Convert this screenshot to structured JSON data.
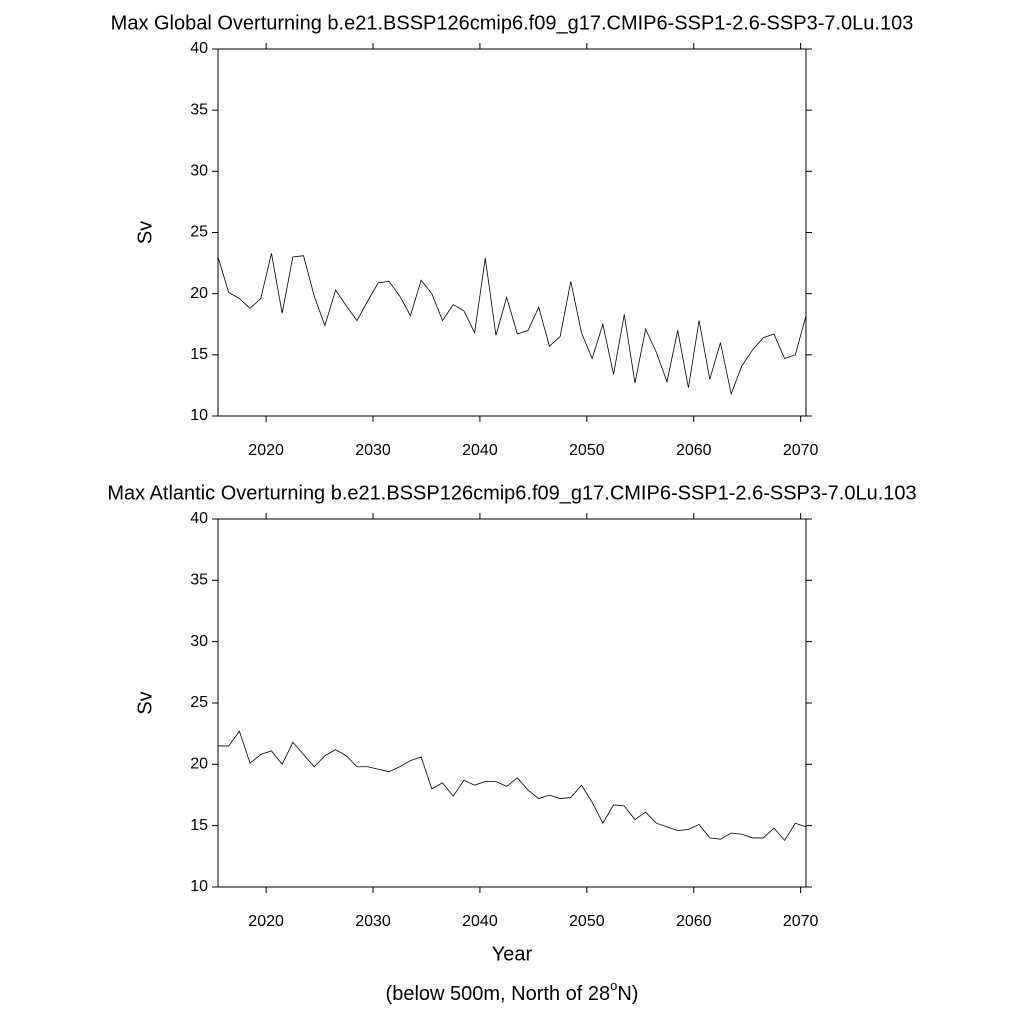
{
  "chart_data": [
    {
      "type": "line",
      "title": "Max Global Overturning b.e21.BSSP126cmip6.f09_g17.CMIP6-SSP1-2.6-SSP3-7.0Lu.103",
      "ylabel": "Sv",
      "x": [
        2015.5,
        2016.5,
        2017.5,
        2018.5,
        2019.5,
        2020.5,
        2021.5,
        2022.5,
        2023.5,
        2024.5,
        2025.5,
        2026.5,
        2027.5,
        2028.5,
        2029.5,
        2030.5,
        2031.5,
        2032.5,
        2033.5,
        2034.5,
        2035.5,
        2036.5,
        2037.5,
        2038.5,
        2039.5,
        2040.5,
        2041.5,
        2042.5,
        2043.5,
        2044.5,
        2045.5,
        2046.5,
        2047.5,
        2048.5,
        2049.5,
        2050.5,
        2051.5,
        2052.5,
        2053.5,
        2054.5,
        2055.5,
        2056.5,
        2057.5,
        2058.5,
        2059.5,
        2060.5,
        2061.5,
        2062.5,
        2063.5,
        2064.5,
        2065.5,
        2066.5,
        2067.5,
        2068.5,
        2069.5,
        2070.5
      ],
      "series": [
        {
          "color": "#000000",
          "values": [
            23.0,
            20.1,
            19.6,
            18.8,
            19.6,
            23.3,
            18.4,
            23.0,
            23.1,
            19.8,
            17.4,
            20.3,
            19.0,
            17.8,
            19.4,
            20.9,
            21.0,
            19.8,
            18.2,
            21.1,
            20.0,
            17.8,
            19.1,
            18.6,
            16.8,
            22.9,
            16.6,
            19.7,
            16.7,
            17.0,
            18.9,
            15.7,
            16.5,
            21.0,
            16.8,
            14.7,
            17.5,
            13.4,
            18.3,
            12.7,
            17.1,
            15.2,
            12.8,
            17.0,
            12.3,
            17.8,
            13.0,
            16.0,
            11.8,
            14.1,
            15.4,
            16.4,
            16.7,
            14.7,
            15.0,
            18.2
          ]
        }
      ],
      "xlim": [
        2015.5,
        2070.5
      ],
      "xticks": [
        2020,
        2030,
        2040,
        2050,
        2060,
        2070
      ],
      "ylim": [
        10,
        40
      ],
      "yticks": [
        10,
        15,
        20,
        25,
        30,
        35,
        40
      ]
    },
    {
      "type": "line",
      "title": "Max Atlantic Overturning b.e21.BSSP126cmip6.f09_g17.CMIP6-SSP1-2.6-SSP3-7.0Lu.103",
      "ylabel": "Sv",
      "xlabel": "Year",
      "note": {
        "text": "(below 500m, North of 28",
        "superscript": "o",
        "after": "N)"
      },
      "x": [
        2015.5,
        2016.5,
        2017.5,
        2018.5,
        2019.5,
        2020.5,
        2021.5,
        2022.5,
        2023.5,
        2024.5,
        2025.5,
        2026.5,
        2027.5,
        2028.5,
        2029.5,
        2030.5,
        2031.5,
        2032.5,
        2033.5,
        2034.5,
        2035.5,
        2036.5,
        2037.5,
        2038.5,
        2039.5,
        2040.5,
        2041.5,
        2042.5,
        2043.5,
        2044.5,
        2045.5,
        2046.5,
        2047.5,
        2048.5,
        2049.5,
        2050.5,
        2051.5,
        2052.5,
        2053.5,
        2054.5,
        2055.5,
        2056.5,
        2057.5,
        2058.5,
        2059.5,
        2060.5,
        2061.5,
        2062.5,
        2063.5,
        2064.5,
        2065.5,
        2066.5,
        2067.5,
        2068.5,
        2069.5,
        2070.5
      ],
      "series": [
        {
          "color": "#000000",
          "values": [
            21.5,
            21.5,
            22.7,
            20.1,
            20.8,
            21.1,
            20.0,
            21.8,
            20.8,
            19.8,
            20.7,
            21.2,
            20.7,
            19.8,
            19.8,
            19.6,
            19.4,
            19.8,
            20.3,
            20.6,
            18.0,
            18.5,
            17.4,
            18.7,
            18.3,
            18.6,
            18.6,
            18.2,
            18.9,
            17.9,
            17.2,
            17.5,
            17.2,
            17.3,
            18.3,
            16.9,
            15.2,
            16.7,
            16.6,
            15.5,
            16.1,
            15.2,
            14.9,
            14.6,
            14.7,
            15.1,
            14.0,
            13.9,
            14.4,
            14.3,
            14.0,
            14.0,
            14.8,
            13.8,
            15.2,
            14.9
          ]
        }
      ],
      "xlim": [
        2015.5,
        2070.5
      ],
      "xticks": [
        2020,
        2030,
        2040,
        2050,
        2060,
        2070
      ],
      "ylim": [
        10,
        40
      ],
      "yticks": [
        10,
        15,
        20,
        25,
        30,
        35,
        40
      ]
    }
  ]
}
